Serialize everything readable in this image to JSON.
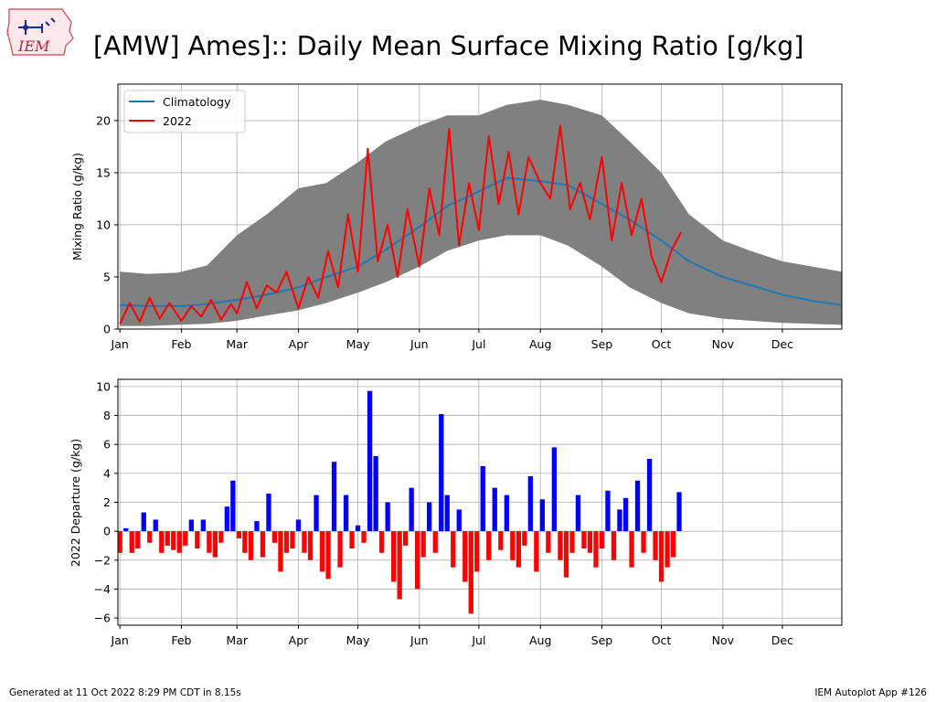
{
  "page": {
    "title": "[AMW] Ames]:: Daily Mean Surface Mixing Ratio [g/kg]",
    "footer_left": "Generated at 11 Oct 2022 8:29 PM CDT in 8.15s",
    "footer_right": "IEM Autoplot App #126",
    "logo_text": "IEM"
  },
  "colors": {
    "climatology": "#1f77b4",
    "observed": "#ff0000",
    "range_fill": "#808080",
    "positive_bar": "#0000ff",
    "negative_bar": "#ff0000",
    "grid": "#b0b0b0"
  },
  "chart_data": [
    {
      "type": "line",
      "panel": "top",
      "xlabel": "",
      "ylabel": "Mixing Ratio (g/kg)",
      "ylim": [
        0,
        23.5
      ],
      "xlim": [
        0,
        365
      ],
      "yticks": [
        0,
        5,
        10,
        15,
        20
      ],
      "xtick_labels": [
        "Jan",
        "Feb",
        "Mar",
        "Apr",
        "May",
        "Jun",
        "Jul",
        "Aug",
        "Sep",
        "Oct",
        "Nov",
        "Dec"
      ],
      "xtick_days": [
        1,
        32,
        60,
        91,
        121,
        152,
        182,
        213,
        244,
        274,
        305,
        335
      ],
      "grid": true,
      "legend": {
        "placement": "top-left",
        "entries": [
          "Climatology",
          "2022"
        ]
      },
      "range_band": {
        "x": [
          1,
          15,
          30,
          45,
          60,
          75,
          91,
          105,
          121,
          135,
          152,
          166,
          182,
          196,
          213,
          227,
          244,
          258,
          274,
          288,
          305,
          319,
          335,
          350,
          365
        ],
        "upper": [
          5.5,
          5.3,
          5.4,
          6.1,
          9.0,
          11.0,
          13.5,
          14.0,
          16.0,
          18.0,
          19.5,
          20.5,
          20.5,
          21.5,
          22.0,
          21.5,
          20.5,
          18.0,
          15.0,
          11.0,
          8.5,
          7.5,
          6.5,
          6.0,
          5.5
        ],
        "lower": [
          0.3,
          0.3,
          0.4,
          0.5,
          0.8,
          1.3,
          1.8,
          2.5,
          3.5,
          4.5,
          6.0,
          7.5,
          8.5,
          9.0,
          9.0,
          8.0,
          6.0,
          4.0,
          2.5,
          1.5,
          1.0,
          0.8,
          0.6,
          0.5,
          0.4
        ]
      },
      "series": [
        {
          "name": "Climatology",
          "x": [
            1,
            15,
            32,
            45,
            60,
            75,
            91,
            105,
            121,
            135,
            152,
            166,
            182,
            196,
            213,
            227,
            244,
            258,
            274,
            288,
            305,
            319,
            335,
            350,
            365
          ],
          "values": [
            2.3,
            2.2,
            2.2,
            2.4,
            2.8,
            3.3,
            4.0,
            5.0,
            6.0,
            7.6,
            9.8,
            11.8,
            13.2,
            14.5,
            14.2,
            13.8,
            12.0,
            10.5,
            8.5,
            6.5,
            5.0,
            4.2,
            3.3,
            2.7,
            2.3
          ]
        },
        {
          "name": "2022",
          "x": [
            1,
            6,
            11,
            16,
            21,
            26,
            32,
            37,
            42,
            47,
            52,
            57,
            60,
            65,
            70,
            75,
            80,
            85,
            91,
            96,
            101,
            106,
            111,
            116,
            121,
            126,
            131,
            136,
            141,
            146,
            152,
            157,
            162,
            167,
            172,
            177,
            182,
            187,
            192,
            197,
            202,
            207,
            213,
            218,
            223,
            228,
            233,
            238,
            244,
            249,
            254,
            259,
            264,
            269,
            274,
            279,
            284
          ],
          "values": [
            0.5,
            2.5,
            0.7,
            3.0,
            1.0,
            2.5,
            0.8,
            2.2,
            1.2,
            2.8,
            0.9,
            2.4,
            1.5,
            4.5,
            2.0,
            4.2,
            3.5,
            5.5,
            2.0,
            5.0,
            3.0,
            7.5,
            4.0,
            11.0,
            5.5,
            17.3,
            6.5,
            10.0,
            5.0,
            11.5,
            6.0,
            13.5,
            9.0,
            19.2,
            8.0,
            14.0,
            9.5,
            18.5,
            12.0,
            17.0,
            11.0,
            16.5,
            14.0,
            12.5,
            19.5,
            11.5,
            14.0,
            10.5,
            16.5,
            8.5,
            14.0,
            9.0,
            12.5,
            7.0,
            4.5,
            7.5,
            9.3
          ]
        }
      ]
    },
    {
      "type": "bar",
      "panel": "bottom",
      "xlabel": "",
      "ylabel": "2022 Departure (g/kg)",
      "ylim": [
        -6.5,
        10.5
      ],
      "xlim": [
        0,
        365
      ],
      "yticks": [
        -6,
        -4,
        -2,
        0,
        2,
        4,
        6,
        8,
        10
      ],
      "xtick_labels": [
        "Jan",
        "Feb",
        "Mar",
        "Apr",
        "May",
        "Jun",
        "Jul",
        "Aug",
        "Sep",
        "Oct",
        "Nov",
        "Dec"
      ],
      "xtick_days": [
        1,
        32,
        60,
        91,
        121,
        152,
        182,
        213,
        244,
        274,
        305,
        335
      ],
      "grid": true,
      "x": [
        1,
        4,
        7,
        10,
        13,
        16,
        19,
        22,
        25,
        28,
        31,
        34,
        37,
        40,
        43,
        46,
        49,
        52,
        55,
        58,
        61,
        64,
        67,
        70,
        73,
        76,
        79,
        82,
        85,
        88,
        91,
        94,
        97,
        100,
        103,
        106,
        109,
        112,
        115,
        118,
        121,
        124,
        127,
        130,
        133,
        136,
        139,
        142,
        145,
        148,
        151,
        154,
        157,
        160,
        163,
        166,
        169,
        172,
        175,
        178,
        181,
        184,
        187,
        190,
        193,
        196,
        199,
        202,
        205,
        208,
        211,
        214,
        217,
        220,
        223,
        226,
        229,
        232,
        235,
        238,
        241,
        244,
        247,
        250,
        253,
        256,
        259,
        262,
        265,
        268,
        271,
        274,
        277,
        280,
        283
      ],
      "values": [
        -1.5,
        0.2,
        -1.5,
        -1.2,
        1.3,
        -0.8,
        0.8,
        -1.5,
        -1.0,
        -1.3,
        -1.5,
        -1.0,
        0.8,
        -1.2,
        0.8,
        -1.5,
        -1.8,
        -0.8,
        1.7,
        3.5,
        -0.5,
        -1.5,
        -2.0,
        0.7,
        -1.8,
        2.6,
        -0.8,
        -2.8,
        -1.5,
        -1.2,
        0.8,
        -1.5,
        -2.0,
        2.5,
        -2.8,
        -3.3,
        4.8,
        -2.5,
        2.5,
        -1.2,
        0.4,
        -0.8,
        9.7,
        5.2,
        -1.5,
        2.0,
        -3.5,
        -4.7,
        -1.0,
        3.0,
        -4.0,
        -1.8,
        2.0,
        -1.5,
        8.1,
        2.5,
        -2.5,
        1.5,
        -3.5,
        -5.7,
        -2.8,
        4.5,
        -2.0,
        3.0,
        -1.3,
        2.5,
        -2.0,
        -2.5,
        -1.0,
        3.8,
        -2.8,
        2.2,
        -1.5,
        5.8,
        -2.0,
        -3.2,
        -1.5,
        2.5,
        -1.2,
        -1.5,
        -2.5,
        -1.2,
        2.8,
        -2.0,
        1.5,
        2.3,
        -2.5,
        3.5,
        -1.5,
        5.0,
        -2.0,
        -3.5,
        -2.5,
        -1.8,
        2.7
      ]
    }
  ]
}
